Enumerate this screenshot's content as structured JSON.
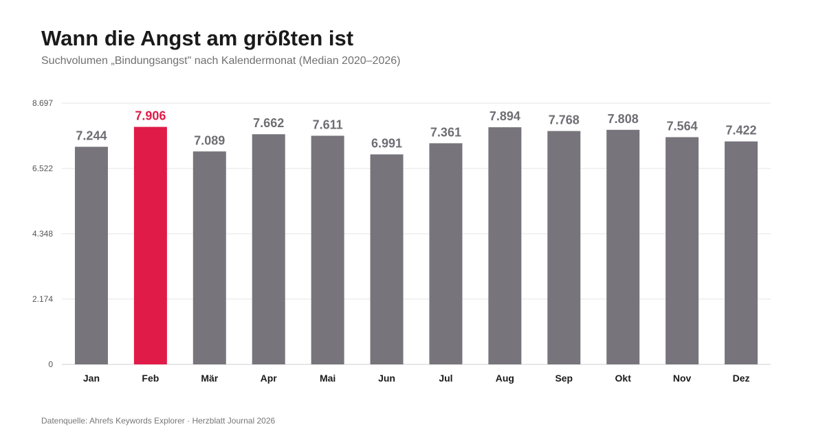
{
  "chart_data": {
    "type": "bar",
    "title": "Wann die Angst am größten ist",
    "subtitle": "Suchvolumen „Bindungsangst\" nach Kalendermonat (Median 2020–2026)",
    "categories": [
      "Jan",
      "Feb",
      "Mär",
      "Apr",
      "Mai",
      "Jun",
      "Jul",
      "Aug",
      "Sep",
      "Okt",
      "Nov",
      "Dez"
    ],
    "values": [
      7244,
      7906,
      7089,
      7662,
      7611,
      6991,
      7361,
      7894,
      7768,
      7808,
      7564,
      7422
    ],
    "value_labels": [
      "7.244",
      "7.906",
      "7.089",
      "7.662",
      "7.611",
      "6.991",
      "7.361",
      "7.894",
      "7.768",
      "7.808",
      "7.564",
      "7.422"
    ],
    "highlight_index": 1,
    "xlabel": "",
    "ylabel": "",
    "ylim": [
      0,
      8697
    ],
    "yticks": [
      0,
      2174,
      4348,
      6522,
      8697
    ],
    "ytick_labels": [
      "0",
      "2.174",
      "4.348",
      "6.522",
      "8.697"
    ],
    "grid": true,
    "legend": "none",
    "colors": {
      "bar": "#77757b",
      "highlight": "#e01b48",
      "value_label": "#6f6d73",
      "grid": "#e6e6e6",
      "axis": "#cfcfcf"
    }
  },
  "source": "Datenquelle: Ahrefs Keywords Explorer · Herzblatt Journal 2026"
}
